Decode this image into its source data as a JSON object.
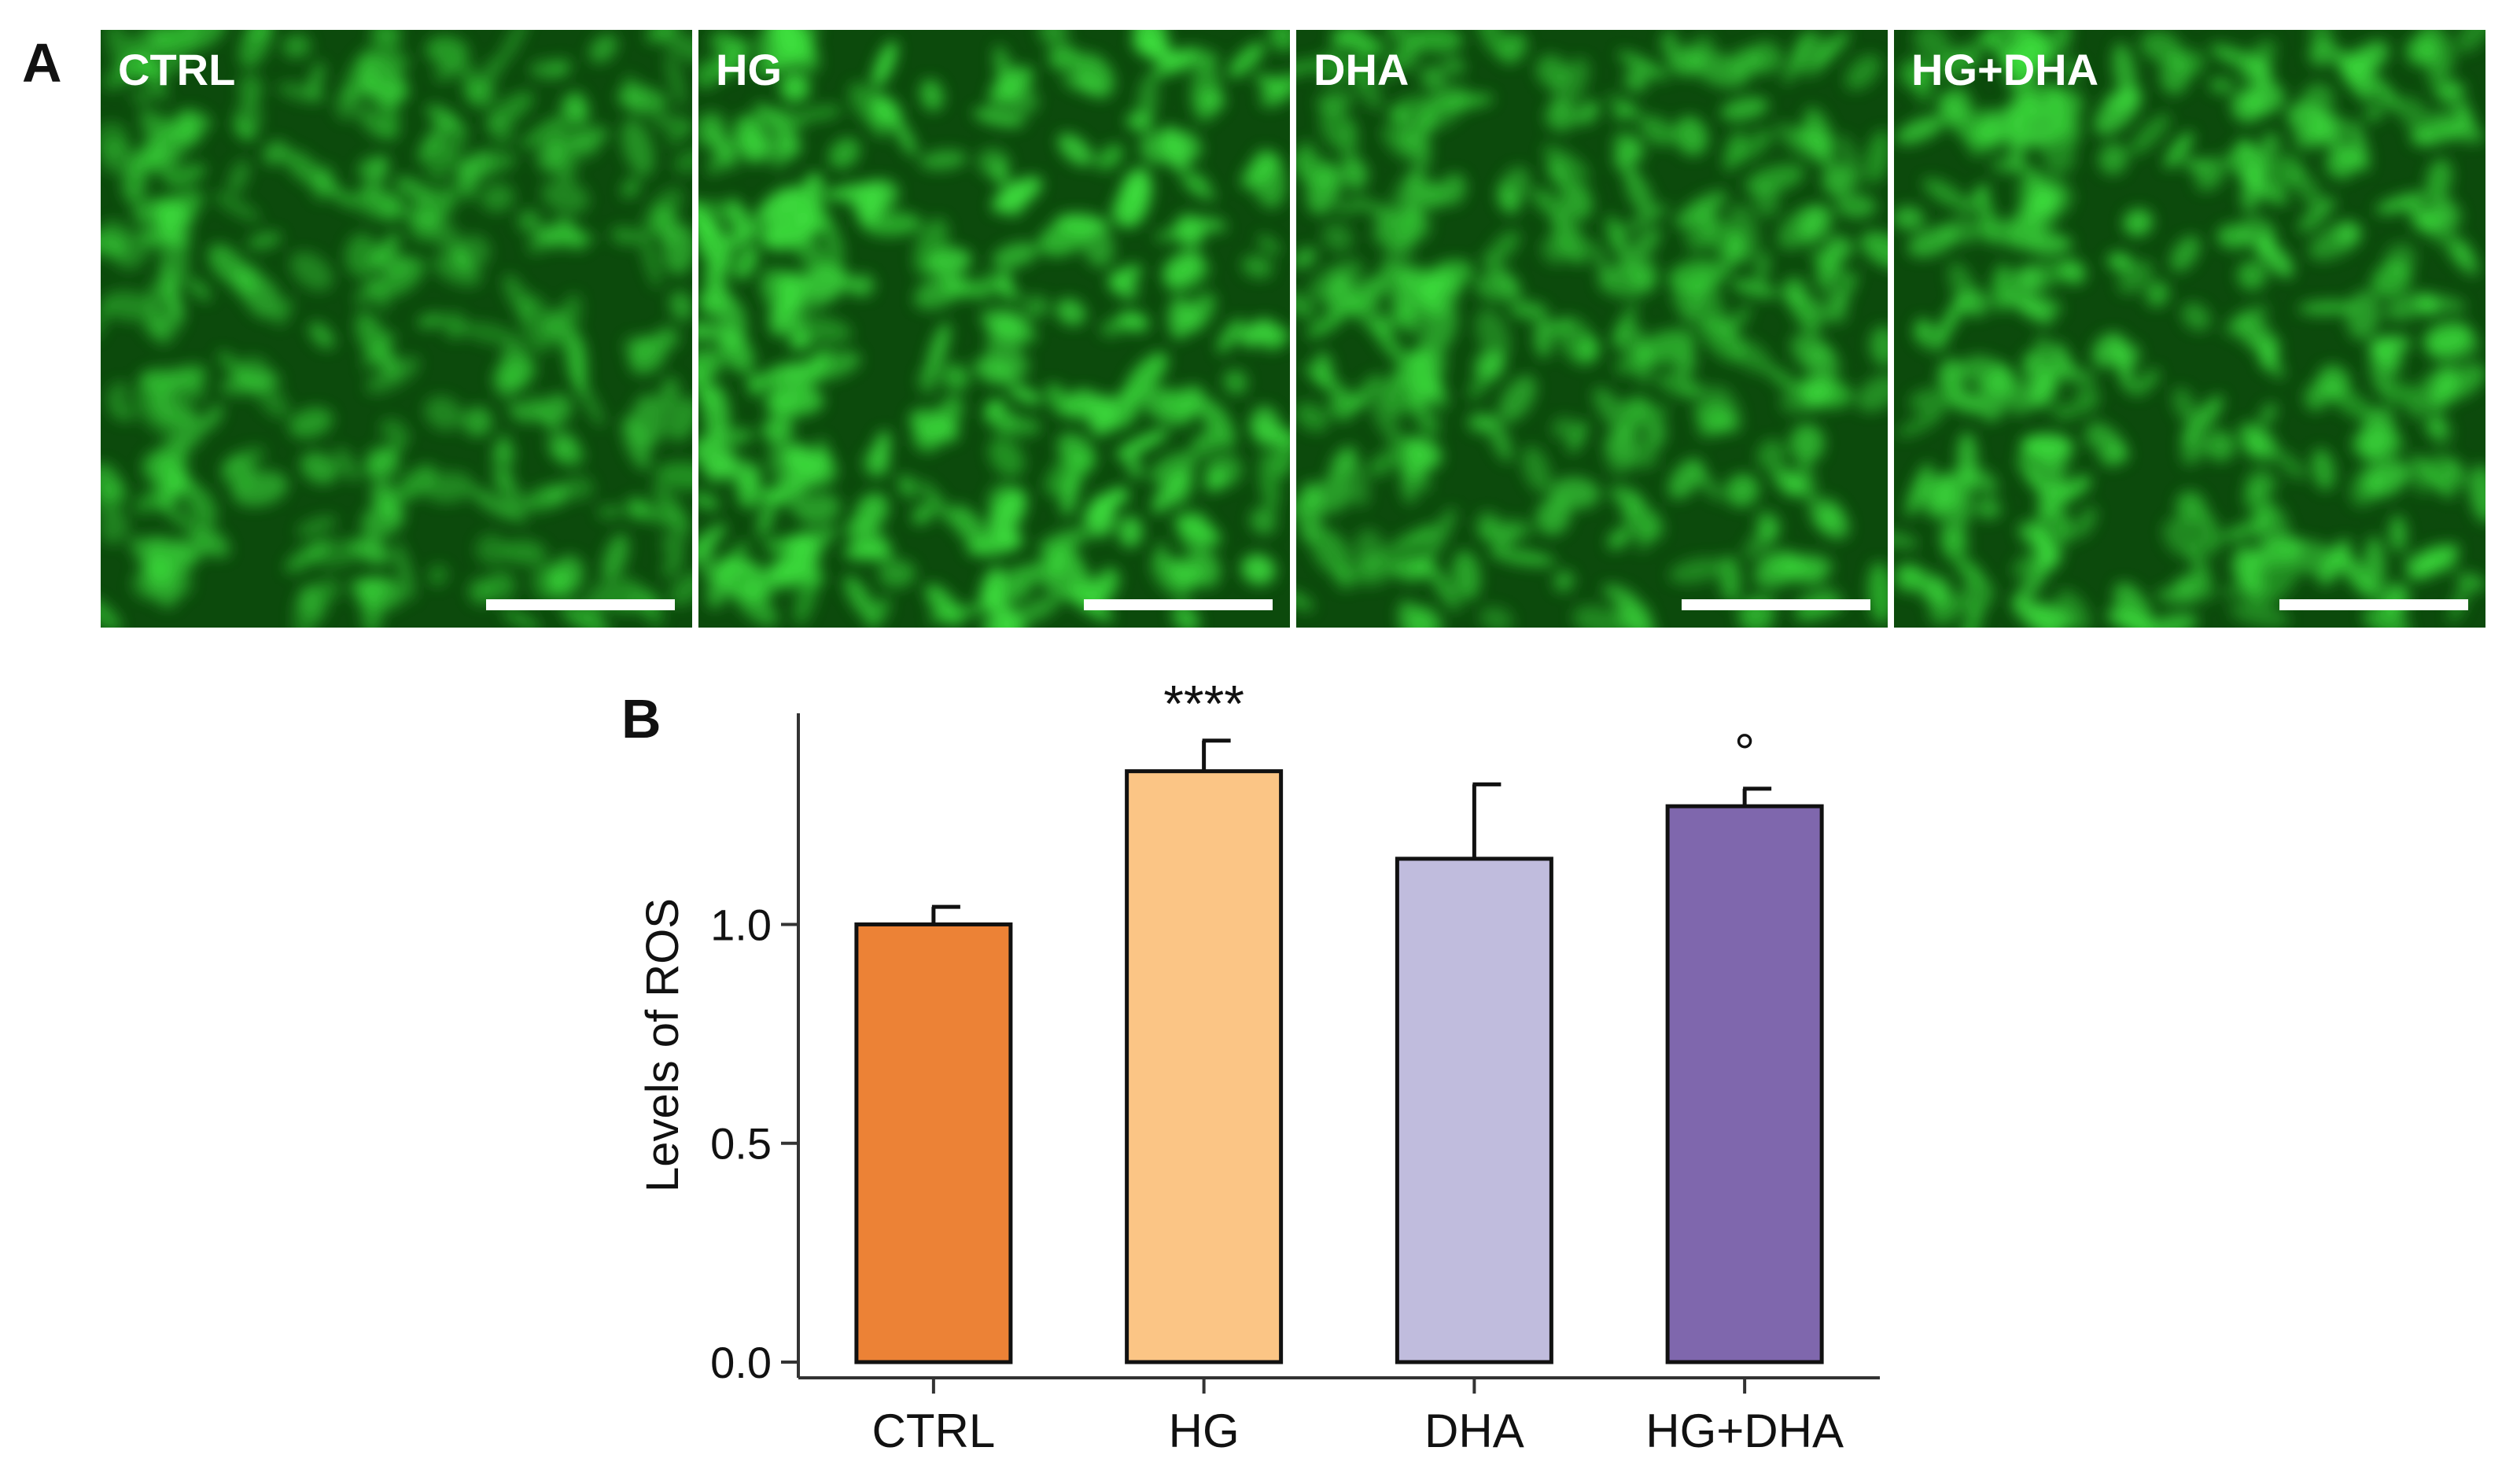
{
  "panel_a": {
    "letter": "A",
    "images": [
      {
        "label": "CTRL",
        "intensity": 0.45
      },
      {
        "label": "HG",
        "intensity": 0.85
      },
      {
        "label": "DHA",
        "intensity": 0.55
      },
      {
        "label": "HG+DHA",
        "intensity": 0.7
      }
    ],
    "colors": {
      "dark": "#0c4a0c",
      "bright": "#3ee03e",
      "bar": "#ffffff"
    }
  },
  "chart_data": {
    "panel_letter": "B",
    "type": "bar",
    "categories": [
      "CTRL",
      "HG",
      "DHA",
      "HG+DHA"
    ],
    "values": [
      1.0,
      1.35,
      1.15,
      1.27
    ],
    "errors": [
      0.04,
      0.07,
      0.17,
      0.04
    ],
    "annotations": [
      "",
      "****",
      "",
      "°"
    ],
    "colors": [
      "#ec8236",
      "#fbc585",
      "#c0bcdd",
      "#7f67ad"
    ],
    "ylabel": "Levels of ROS",
    "ylim": [
      0,
      1.45
    ],
    "yticks": [
      0.0,
      0.5,
      1.0
    ],
    "ytick_labels": [
      "0.0",
      "0.5",
      "1.0"
    ]
  }
}
